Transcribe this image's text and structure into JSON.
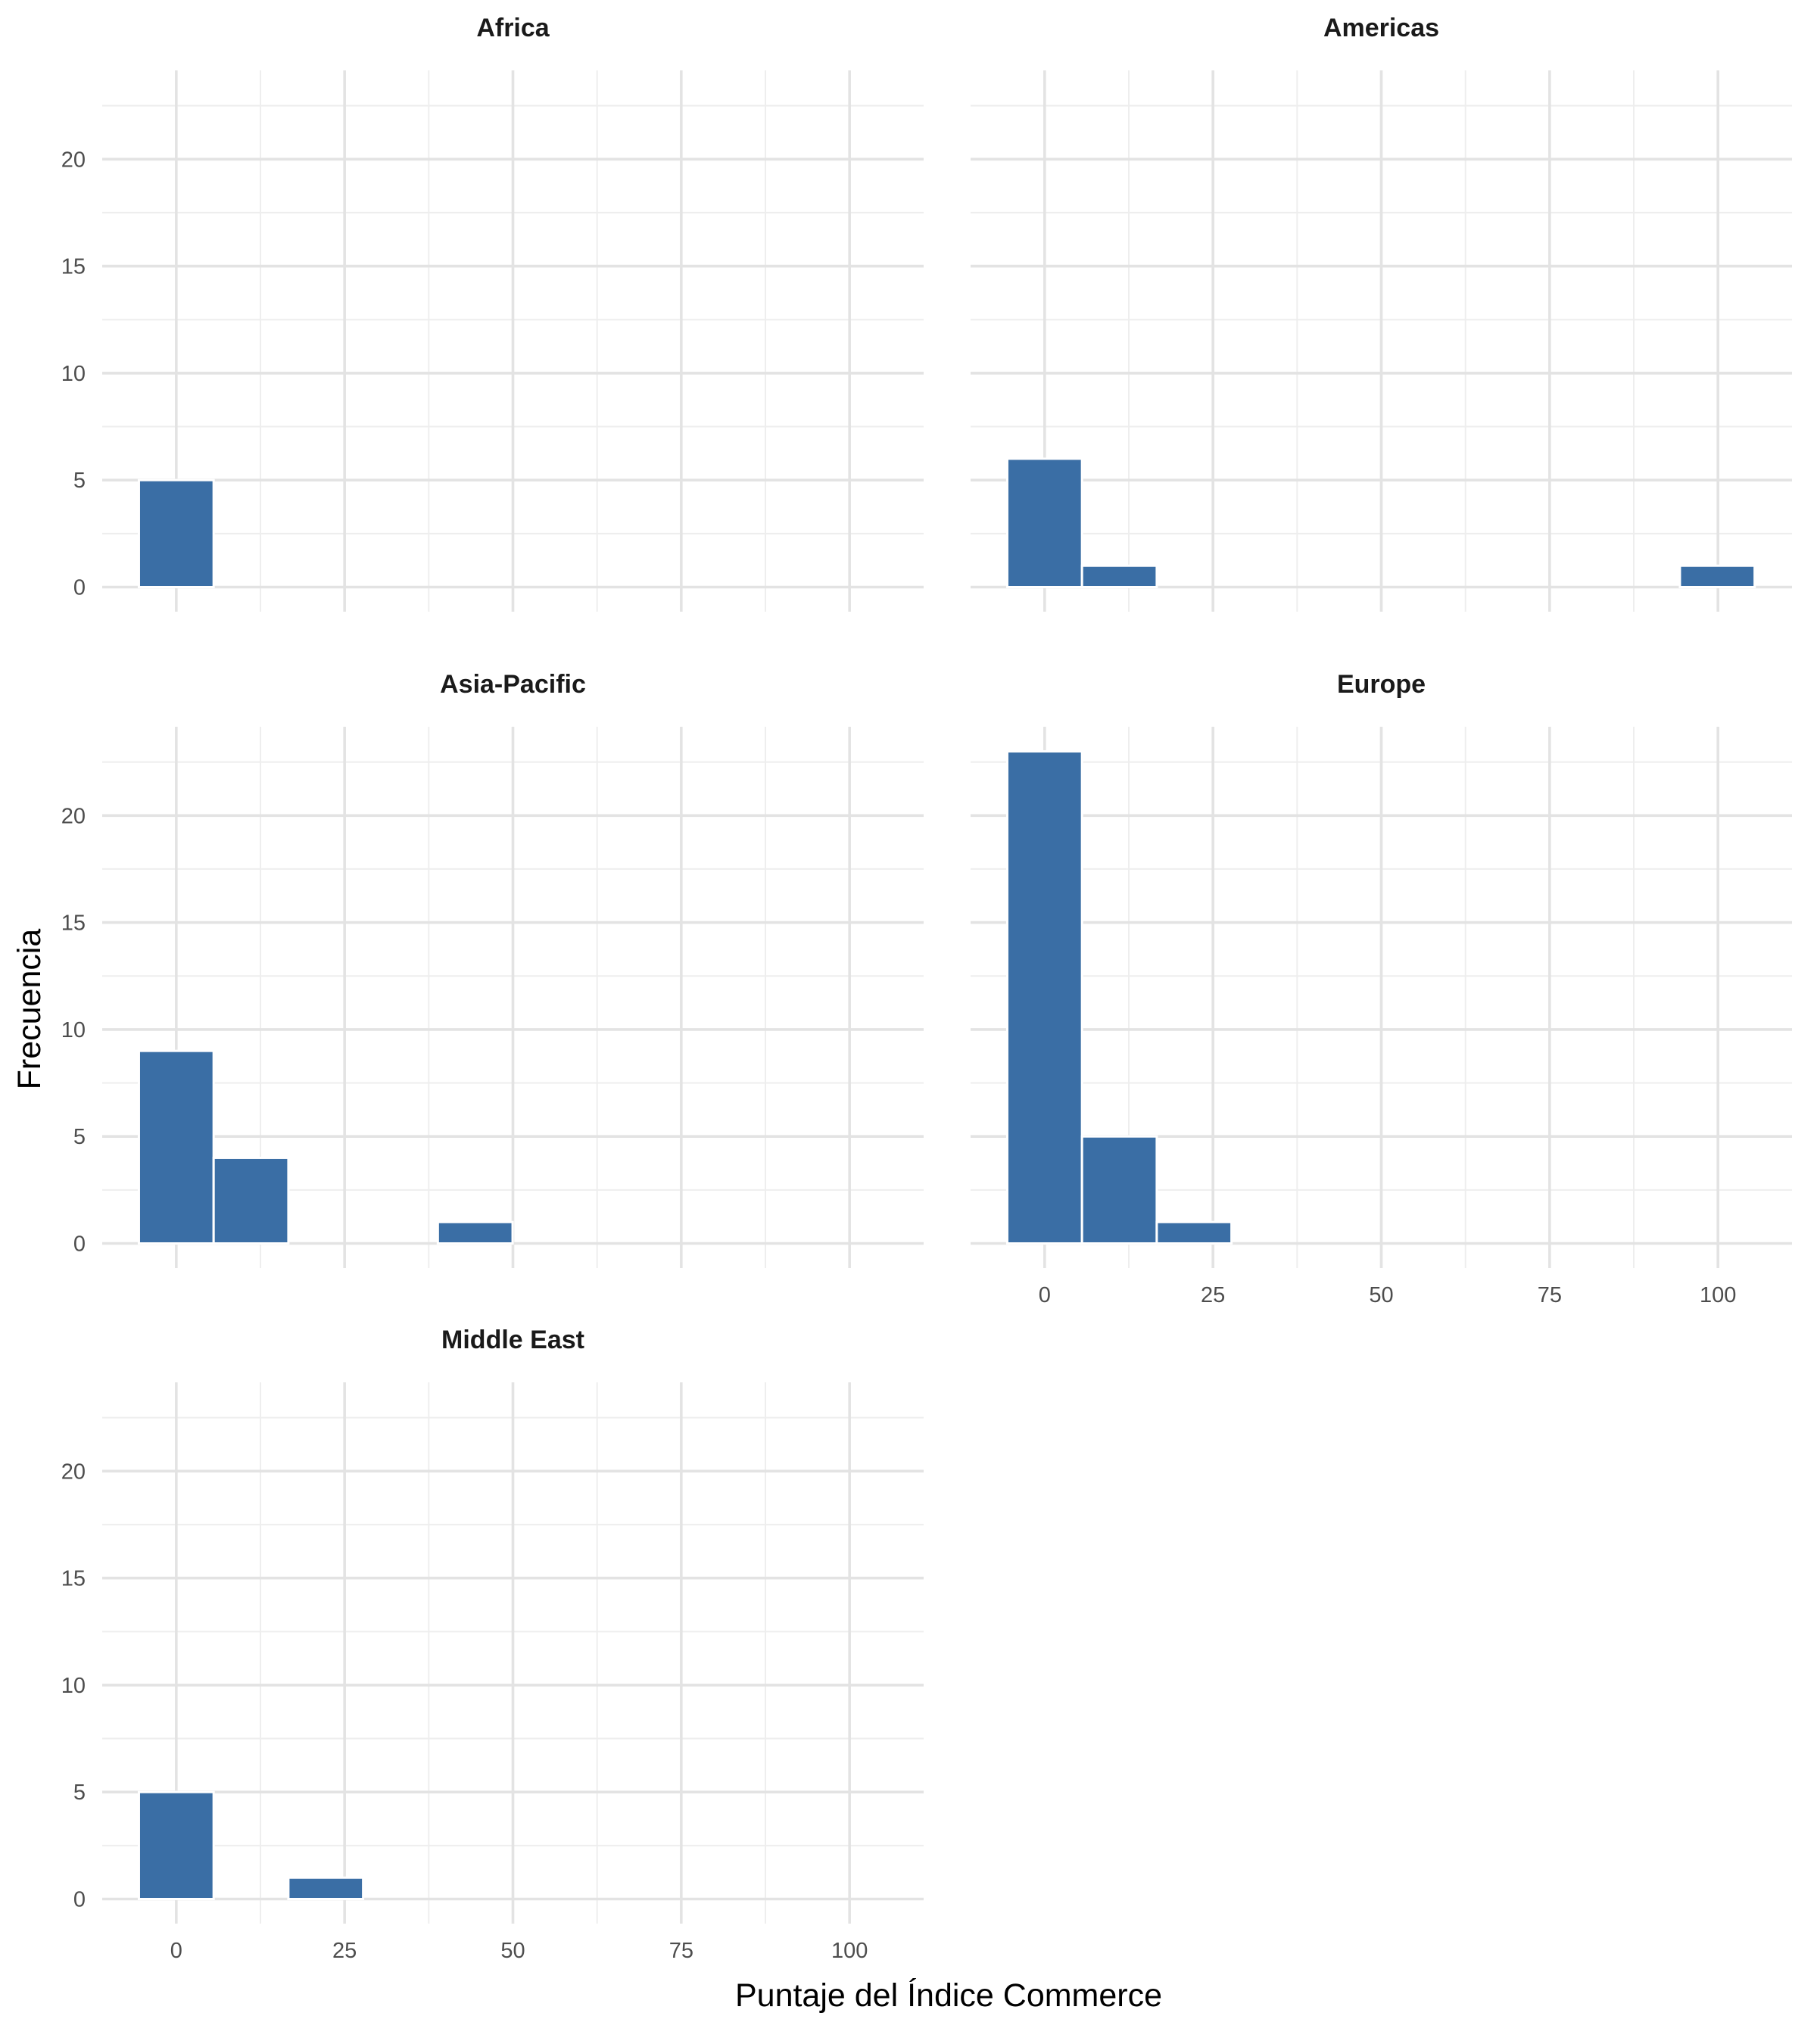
{
  "chart_data": {
    "type": "bar",
    "title": "",
    "xlabel": "Puntaje del Índice Commerce",
    "ylabel": "Frecuencia",
    "xlim": [
      -11,
      111
    ],
    "ylim": [
      -1.15,
      24.15
    ],
    "x_ticks": [
      0,
      25,
      50,
      75,
      100
    ],
    "y_ticks": [
      0,
      5,
      10,
      15,
      20
    ],
    "bin_width": 11.1,
    "bin_centers": [
      0,
      11.1,
      22.2,
      33.3,
      44.4,
      55.5,
      66.6,
      77.7,
      88.8,
      99.9
    ],
    "grid": true,
    "bar_color": "#3A6EA5",
    "panels": [
      {
        "name": "Africa",
        "values": [
          5,
          0,
          0,
          0,
          0,
          0,
          0,
          0,
          0,
          0
        ]
      },
      {
        "name": "Americas",
        "values": [
          6,
          1,
          0,
          0,
          0,
          0,
          0,
          0,
          0,
          1
        ]
      },
      {
        "name": "Asia-Pacific",
        "values": [
          9,
          4,
          0,
          0,
          1,
          0,
          0,
          0,
          0,
          0
        ]
      },
      {
        "name": "Europe",
        "values": [
          23,
          5,
          1,
          0,
          0,
          0,
          0,
          0,
          0,
          0
        ]
      },
      {
        "name": "Middle East",
        "values": [
          5,
          0,
          1,
          0,
          0,
          0,
          0,
          0,
          0,
          0
        ]
      }
    ]
  }
}
